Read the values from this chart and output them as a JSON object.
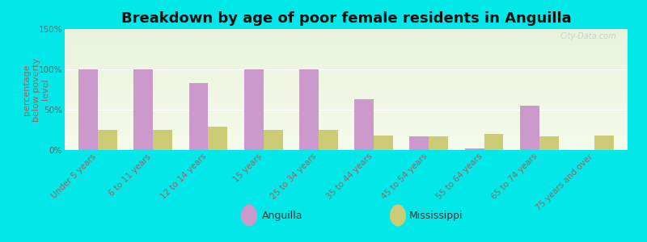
{
  "title": "Breakdown by age of poor female residents in Anguilla",
  "ylabel": "percentage\nbelow poverty\nlevel",
  "categories": [
    "Under 5 years",
    "6 to 11 years",
    "12 to 14 years",
    "15 years",
    "25 to 34 years",
    "35 to 44 years",
    "45 to 54 years",
    "55 to 64 years",
    "65 to 74 years",
    "75 years and over"
  ],
  "anguilla_values": [
    100,
    100,
    83,
    100,
    100,
    63,
    17,
    2,
    55,
    0
  ],
  "mississippi_values": [
    25,
    25,
    29,
    25,
    25,
    18,
    17,
    20,
    17,
    18
  ],
  "anguilla_color": "#cc99cc",
  "mississippi_color": "#cccc77",
  "background_color": "#00e8e8",
  "ylim": [
    0,
    150
  ],
  "yticks": [
    0,
    50,
    100,
    150
  ],
  "ytick_labels": [
    "0%",
    "50%",
    "100%",
    "150%"
  ],
  "bar_width": 0.35,
  "title_fontsize": 13,
  "ylabel_fontsize": 8,
  "tick_fontsize": 7.5,
  "legend_anguilla": "Anguilla",
  "legend_mississippi": "Mississippi",
  "xtick_color": "#996666",
  "ylabel_color": "#996666",
  "ytick_color": "#666666",
  "watermark": "City-Data.com"
}
